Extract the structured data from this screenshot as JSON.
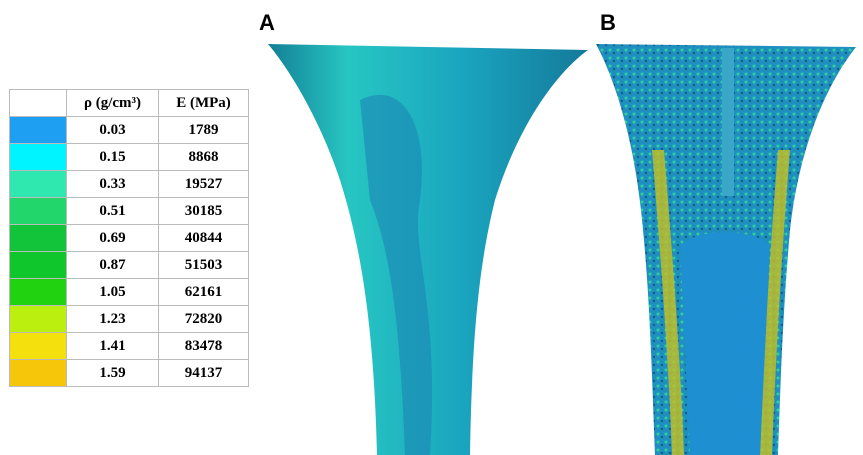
{
  "panels": {
    "a": "A",
    "b": "B"
  },
  "table": {
    "header": [
      "ρ (g/cm³)",
      "E (MPa)"
    ],
    "rows": [
      {
        "color": "#1e9ff2",
        "density": "0.03",
        "modulus": "1789"
      },
      {
        "color": "#00f4ff",
        "density": "0.15",
        "modulus": "8868"
      },
      {
        "color": "#2ee8b0",
        "density": "0.33",
        "modulus": "19527"
      },
      {
        "color": "#22d66c",
        "density": "0.51",
        "modulus": "30185"
      },
      {
        "color": "#12c43a",
        "density": "0.69",
        "modulus": "40844"
      },
      {
        "color": "#0fc72c",
        "density": "0.87",
        "modulus": "51503"
      },
      {
        "color": "#20d210",
        "density": "1.05",
        "modulus": "62161"
      },
      {
        "color": "#bbef10",
        "density": "1.23",
        "modulus": "72820"
      },
      {
        "color": "#f3e00c",
        "density": "1.41",
        "modulus": "83478"
      },
      {
        "color": "#f5c60a",
        "density": "1.59",
        "modulus": "94137"
      }
    ]
  }
}
